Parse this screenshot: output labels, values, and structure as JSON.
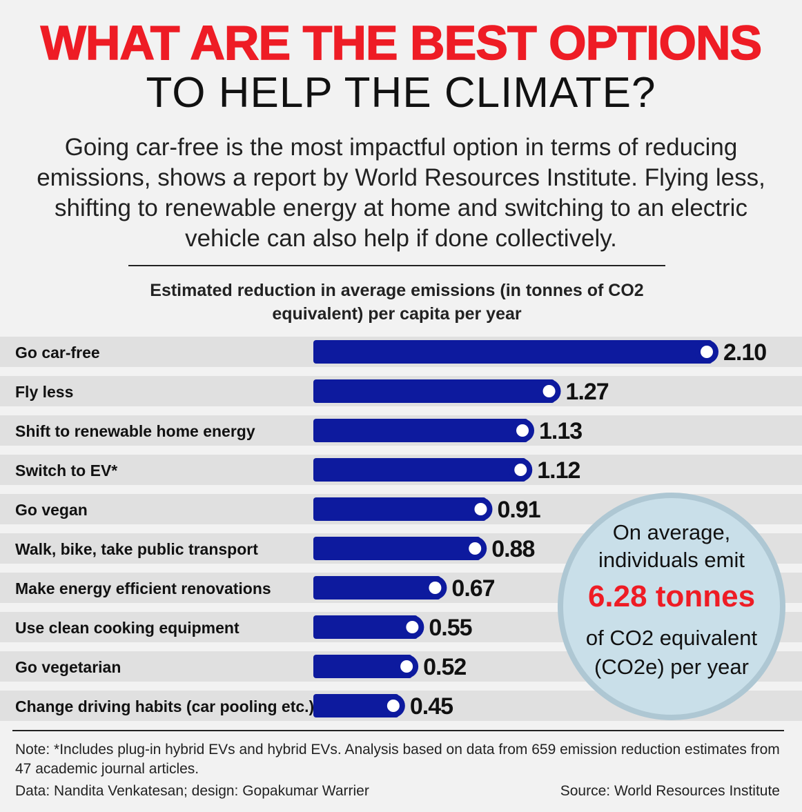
{
  "header": {
    "title_line1": "WHAT ARE THE BEST OPTIONS",
    "title_line2": "TO HELP THE CLIMATE?",
    "subtitle": "Going car-free is the most impactful option in terms of reducing emissions, shows a report by World Resources Institute. Flying less, shifting to renewable energy at home and switching to an electric vehicle can also help if done collectively."
  },
  "chart_data": {
    "type": "bar",
    "orientation": "horizontal",
    "title": "Estimated reduction in average emissions (in tonnes of CO2 equivalent) per capita per year",
    "categories": [
      "Go car-free",
      "Fly less",
      "Shift to renewable home energy",
      "Switch to EV*",
      "Go vegan",
      "Walk, bike, take public transport",
      "Make energy efficient renovations",
      "Use clean cooking equipment",
      "Go vegetarian",
      "Change driving habits (car pooling etc.)"
    ],
    "values": [
      2.1,
      1.27,
      1.13,
      1.12,
      0.91,
      0.88,
      0.67,
      0.55,
      0.52,
      0.45
    ],
    "value_labels": [
      "2.10",
      "1.27",
      "1.13",
      "1.12",
      "0.91",
      "0.88",
      "0.67",
      "0.55",
      "0.52",
      "0.45"
    ],
    "xlim": [
      0,
      2.1
    ],
    "grid": false,
    "legend": "none",
    "colors": {
      "bar": "#0d1a9e",
      "row_band": "#e0e0e0",
      "value_text": "#111111"
    }
  },
  "callout": {
    "line1": "On average, individuals emit",
    "highlight": "6.28 tonnes",
    "line2": "of CO2 equivalent (CO2e) per year",
    "highlight_color": "#ee1c25"
  },
  "footer": {
    "note": "Note: *Includes plug-in hybrid EVs and hybrid EVs. Analysis based on data from 659 emission reduction estimates from 47 academic journal articles.",
    "credit": "Data: Nandita Venkatesan; design: Gopakumar Warrier",
    "source": "Source: World Resources Institute"
  }
}
